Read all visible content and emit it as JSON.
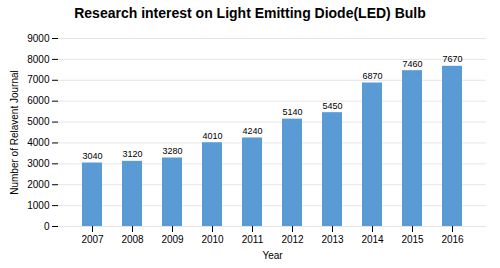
{
  "chart_data": {
    "type": "bar",
    "title": "Research interest on Light Emitting Diode(LED) Bulb",
    "xlabel": "Year",
    "ylabel": "Number of Relavent Journal",
    "categories": [
      "2007",
      "2008",
      "2009",
      "2010",
      "2011",
      "2012",
      "2013",
      "2014",
      "2015",
      "2016"
    ],
    "values": [
      3040,
      3120,
      3280,
      4010,
      4240,
      5140,
      5450,
      6870,
      7460,
      7670
    ],
    "color": "#5b9bd5",
    "ylim": [
      0,
      9000
    ],
    "yticks": [
      0,
      1000,
      2000,
      3000,
      4000,
      5000,
      6000,
      7000,
      8000,
      9000
    ],
    "grid": true,
    "data_labels": true
  }
}
